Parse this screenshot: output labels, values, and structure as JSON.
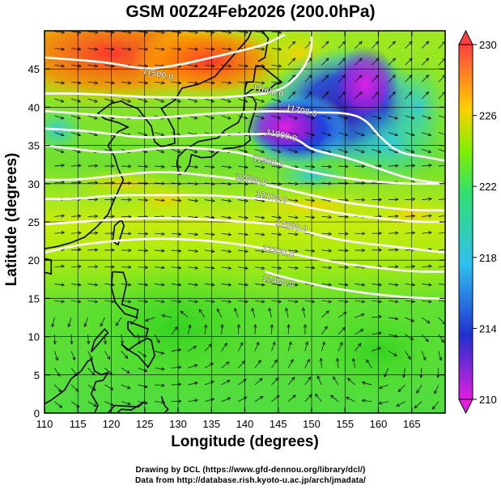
{
  "title": "GSM 00Z24Feb2026 (200.0hPa)",
  "xlabel": "Longitude (degrees)",
  "ylabel": "Latitude  (degrees)",
  "credits": [
    "Drawing by DCL (https://www.gfd-dennou.org/library/dcl/)",
    "Data from http://database.rish.kyoto-u.ac.jp/arch/jmadata/"
  ],
  "colors": {
    "frame": "#000000",
    "contour": "#ffffff",
    "coast": "#000000",
    "vector": "#000000"
  },
  "chart_data": {
    "type": "heatmap",
    "x_ticks": [
      110,
      115,
      120,
      125,
      130,
      135,
      140,
      145,
      150,
      155,
      160,
      165
    ],
    "y_ticks": [
      0,
      5,
      10,
      15,
      20,
      25,
      30,
      35,
      40,
      45
    ],
    "xlim": [
      110,
      170
    ],
    "ylim": [
      0,
      50
    ],
    "grid": true,
    "colorbar": {
      "ticks": [
        230,
        226,
        222,
        218,
        214,
        210
      ],
      "range": [
        210,
        230
      ],
      "stops": [
        "#e020e0",
        "#2030d0",
        "#30c0f0",
        "#30e070",
        "#80f000",
        "#ffd000",
        "#ff4040"
      ]
    },
    "contours": [
      {
        "label": "11500.0",
        "label_lon": 127,
        "label_lat": 44.4,
        "points": [
          [
            110,
            46.5
          ],
          [
            115,
            46.2
          ],
          [
            120,
            45.8
          ],
          [
            125,
            44.9
          ],
          [
            130,
            45.5
          ],
          [
            135,
            46.5
          ],
          [
            140,
            47.5
          ],
          [
            143,
            48.2
          ],
          [
            146,
            49.5
          ]
        ]
      },
      {
        "label": "11600.0",
        "label_lon": 143.5,
        "label_lat": 42.2,
        "points": [
          [
            110,
            41.8
          ],
          [
            115,
            41.8
          ],
          [
            120,
            41.6
          ],
          [
            125,
            41.3
          ],
          [
            130,
            41.3
          ],
          [
            135,
            41.2
          ],
          [
            140,
            41.5
          ],
          [
            145,
            42.0
          ],
          [
            148,
            44
          ],
          [
            150,
            47
          ],
          [
            150,
            50
          ]
        ]
      },
      {
        "label": "11700.0",
        "label_lon": 148.5,
        "label_lat": 39.6,
        "points": [
          [
            110,
            39.5
          ],
          [
            115,
            39.2
          ],
          [
            120,
            38.8
          ],
          [
            125,
            38.5
          ],
          [
            130,
            38.8
          ],
          [
            135,
            39.2
          ],
          [
            140,
            39.4
          ],
          [
            145,
            39.5
          ],
          [
            150,
            39.3
          ],
          [
            155,
            39.3
          ],
          [
            158,
            38.5
          ],
          [
            160,
            36.3
          ],
          [
            163,
            34
          ],
          [
            167,
            33.5
          ],
          [
            170,
            33
          ]
        ]
      },
      {
        "label": "11800.0",
        "label_lon": 145.5,
        "label_lat": 36.4,
        "points": [
          [
            110,
            37.2
          ],
          [
            115,
            37
          ],
          [
            120,
            36.5
          ],
          [
            125,
            36
          ],
          [
            130,
            36.2
          ],
          [
            135,
            36.4
          ],
          [
            140,
            36.5
          ],
          [
            145,
            36.5
          ],
          [
            148,
            35.8
          ],
          [
            150,
            34.4
          ],
          [
            155,
            33.5
          ],
          [
            160,
            32
          ],
          [
            165,
            30.5
          ],
          [
            170,
            30
          ]
        ]
      },
      {
        "label": "11900.0",
        "label_lon": 143.5,
        "label_lat": 33,
        "points": [
          [
            110,
            35
          ],
          [
            115,
            34.5
          ],
          [
            120,
            34
          ],
          [
            125,
            34.5
          ],
          [
            130,
            34.8
          ],
          [
            135,
            34.5
          ],
          [
            140,
            34
          ],
          [
            145,
            32.5
          ],
          [
            150,
            31.5
          ],
          [
            155,
            30.7
          ],
          [
            160,
            30.2
          ],
          [
            165,
            30
          ],
          [
            170,
            30
          ]
        ]
      },
      {
        "label": "12000.0",
        "label_lon": 141,
        "label_lat": 30.6,
        "points": [
          [
            110,
            30.5
          ],
          [
            115,
            30.5
          ],
          [
            120,
            31
          ],
          [
            125,
            31.5
          ],
          [
            130,
            31.5
          ],
          [
            135,
            31
          ],
          [
            140,
            30.5
          ],
          [
            145,
            29.5
          ],
          [
            150,
            28.5
          ],
          [
            155,
            27.5
          ],
          [
            160,
            27
          ],
          [
            165,
            26.5
          ],
          [
            170,
            26.5
          ]
        ]
      },
      {
        "label": "12100.0",
        "label_lon": 144,
        "label_lat": 28.3,
        "points": [
          [
            110,
            28
          ],
          [
            115,
            28
          ],
          [
            120,
            28.5
          ],
          [
            125,
            28.5
          ],
          [
            130,
            28.5
          ],
          [
            135,
            28.5
          ],
          [
            140,
            28.2
          ],
          [
            145,
            27.8
          ],
          [
            150,
            26.8
          ],
          [
            155,
            26
          ],
          [
            160,
            25.5
          ],
          [
            165,
            25
          ],
          [
            170,
            25
          ]
        ]
      },
      {
        "label": "12200.0",
        "label_lon": 147,
        "label_lat": 24.5,
        "points": [
          [
            110,
            24.7
          ],
          [
            115,
            25
          ],
          [
            120,
            25.3
          ],
          [
            125,
            25.5
          ],
          [
            130,
            25.5
          ],
          [
            135,
            25.3
          ],
          [
            140,
            25
          ],
          [
            145,
            24.7
          ],
          [
            150,
            23.5
          ],
          [
            155,
            22.5
          ],
          [
            160,
            22
          ],
          [
            165,
            21.5
          ],
          [
            170,
            21
          ]
        ]
      },
      {
        "label": "12300.0",
        "label_lon": 145,
        "label_lat": 21.2,
        "points": [
          [
            110,
            21
          ],
          [
            115,
            22
          ],
          [
            120,
            22.5
          ],
          [
            125,
            22.8
          ],
          [
            130,
            22.8
          ],
          [
            135,
            22.5
          ],
          [
            140,
            22
          ],
          [
            145,
            21.2
          ],
          [
            150,
            20.3
          ],
          [
            155,
            19.5
          ],
          [
            160,
            19
          ],
          [
            165,
            18.5
          ],
          [
            170,
            18.5
          ]
        ]
      },
      {
        "label": "12400.0",
        "label_lon": 145,
        "label_lat": 17.3,
        "points": [
          [
            143,
            18.5
          ],
          [
            147,
            17.5
          ],
          [
            152,
            16.5
          ],
          [
            157,
            15.8
          ],
          [
            162,
            15.3
          ],
          [
            167,
            15
          ],
          [
            170,
            15
          ]
        ]
      }
    ]
  }
}
